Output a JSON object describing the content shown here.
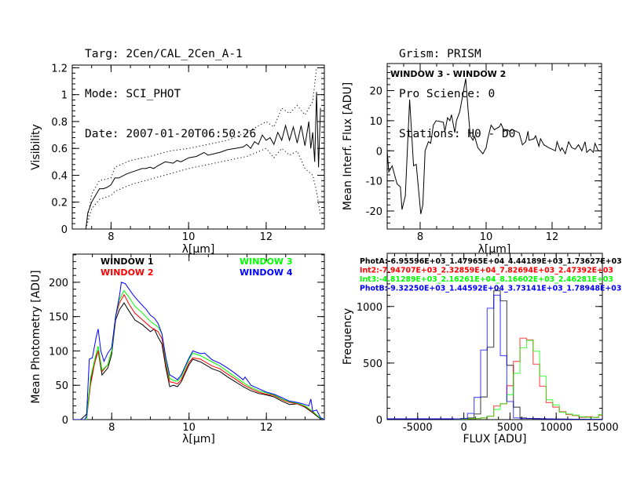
{
  "header": {
    "left": [
      "Targ: 2Cen/CAL_2Cen_A-1",
      "Mode: SCI_PHOT",
      "Date: 2007-01-20T06:50:26"
    ],
    "right": [
      "Grism: PRISM",
      "Pro Science: 0",
      "Stations: H0 - D0"
    ]
  },
  "chart_data": [
    {
      "id": "visibility",
      "type": "line",
      "xlabel": "λ[μm]",
      "ylabel": "Visibility",
      "xlim": [
        7.0,
        13.5
      ],
      "ylim": [
        0,
        1.22
      ],
      "xticks": [
        8,
        10,
        12
      ],
      "yticks": [
        0,
        0.2,
        0.4,
        0.6,
        0.8,
        1,
        1.2
      ],
      "series": [
        {
          "style": "solid",
          "color": "#000000",
          "x": [
            7.0,
            7.35,
            7.4,
            7.5,
            7.6,
            7.7,
            7.8,
            7.9,
            8.0,
            8.1,
            8.2,
            8.4,
            8.6,
            8.8,
            8.9,
            9.0,
            9.1,
            9.2,
            9.4,
            9.6,
            9.7,
            9.8,
            10.0,
            10.2,
            10.4,
            10.5,
            10.8,
            11.0,
            11.2,
            11.4,
            11.5,
            11.6,
            11.7,
            11.8,
            11.9,
            12.0,
            12.1,
            12.2,
            12.3,
            12.4,
            12.5,
            12.6,
            12.7,
            12.8,
            12.9,
            13.0,
            13.1,
            13.15,
            13.2,
            13.25,
            13.3,
            13.35,
            13.4
          ],
          "y": [
            0,
            0,
            0.12,
            0.2,
            0.25,
            0.3,
            0.3,
            0.31,
            0.33,
            0.38,
            0.38,
            0.41,
            0.43,
            0.45,
            0.45,
            0.46,
            0.45,
            0.47,
            0.5,
            0.49,
            0.51,
            0.5,
            0.53,
            0.54,
            0.57,
            0.55,
            0.57,
            0.59,
            0.6,
            0.61,
            0.63,
            0.6,
            0.65,
            0.63,
            0.7,
            0.66,
            0.68,
            0.63,
            0.72,
            0.66,
            0.77,
            0.66,
            0.76,
            0.64,
            0.77,
            0.62,
            0.8,
            0.6,
            0.72,
            0.5,
            1.02,
            0.46,
            0.9
          ]
        },
        {
          "style": "dotted",
          "color": "#000000",
          "x": [
            7.35,
            7.5,
            7.7,
            8.0,
            8.1,
            8.5,
            9.0,
            9.5,
            10.0,
            10.5,
            11.0,
            11.5,
            12.0,
            12.2,
            12.4,
            12.6,
            12.8,
            13.0,
            13.2,
            13.3,
            13.4
          ],
          "y": [
            0,
            0.26,
            0.36,
            0.38,
            0.46,
            0.51,
            0.54,
            0.58,
            0.6,
            0.63,
            0.66,
            0.72,
            0.8,
            0.76,
            0.9,
            0.86,
            0.92,
            0.85,
            0.95,
            1.2,
            1.2
          ]
        },
        {
          "style": "dotted",
          "color": "#000000",
          "x": [
            7.35,
            7.5,
            7.7,
            8.0,
            8.1,
            8.5,
            9.0,
            9.5,
            10.0,
            10.5,
            11.0,
            11.5,
            12.0,
            12.2,
            12.4,
            12.6,
            12.8,
            13.0,
            13.2,
            13.3,
            13.4
          ],
          "y": [
            0,
            0.15,
            0.22,
            0.25,
            0.28,
            0.33,
            0.37,
            0.41,
            0.45,
            0.48,
            0.51,
            0.54,
            0.6,
            0.53,
            0.6,
            0.55,
            0.58,
            0.45,
            0.4,
            0.28,
            0.1
          ]
        }
      ]
    },
    {
      "id": "interf-flux",
      "type": "line",
      "xlabel": "λ[μm]",
      "ylabel": "Mean Interf. Flux [ADU]",
      "annotation": "WINDOW 3 - WINDOW 2",
      "xlim": [
        7.0,
        13.5
      ],
      "ylim": [
        -26,
        29
      ],
      "xticks": [
        8,
        10,
        12
      ],
      "yticks": [
        -20,
        -10,
        0,
        10,
        20
      ],
      "series": [
        {
          "style": "solid",
          "color": "#000000",
          "x": [
            7.0,
            7.05,
            7.15,
            7.3,
            7.4,
            7.45,
            7.55,
            7.68,
            7.8,
            7.88,
            8.02,
            8.08,
            8.15,
            8.25,
            8.32,
            8.4,
            8.48,
            8.7,
            8.75,
            8.83,
            8.9,
            8.95,
            9.05,
            9.1,
            9.2,
            9.3,
            9.38,
            9.45,
            9.52,
            9.6,
            9.65,
            9.75,
            9.9,
            10.0,
            10.05,
            10.15,
            10.25,
            10.4,
            10.45,
            10.55,
            10.65,
            10.7,
            10.8,
            10.9,
            11.0,
            11.1,
            11.2,
            11.27,
            11.3,
            11.45,
            11.5,
            11.6,
            11.65,
            11.75,
            11.9,
            12.0,
            12.1,
            12.15,
            12.25,
            12.3,
            12.4,
            12.5,
            12.6,
            12.7,
            12.8,
            12.9,
            13.0,
            13.05,
            13.15,
            13.25,
            13.3,
            13.4
          ],
          "y": [
            0,
            -7,
            -5,
            -11,
            -12,
            -19.5,
            -15,
            17,
            -5,
            -4.5,
            -21,
            -18,
            0,
            3,
            2.5,
            8.5,
            10,
            9.5,
            6.5,
            11,
            10,
            12,
            6,
            10,
            13,
            19,
            24,
            14,
            5,
            3.5,
            4.8,
            1,
            -1,
            1,
            4,
            8.5,
            7,
            8,
            9,
            6.5,
            7,
            6.5,
            7,
            6.5,
            6,
            2,
            3,
            6.5,
            3.5,
            4,
            5,
            1.5,
            4,
            2,
            1,
            0.5,
            0,
            3,
            0,
            1,
            -1,
            3,
            1,
            0.5,
            2,
            0,
            3,
            -0.5,
            0.5,
            -0.5,
            2.5,
            0
          ]
        }
      ]
    },
    {
      "id": "photometry",
      "type": "line",
      "xlabel": "λ[μm]",
      "ylabel": "Mean Photometry [ADU]",
      "xlim": [
        7.0,
        13.5
      ],
      "ylim": [
        0,
        241
      ],
      "xticks": [
        8,
        10,
        12
      ],
      "yticks": [
        0,
        50,
        100,
        150,
        200
      ],
      "series": [
        {
          "name": "WINDOW 1",
          "color": "#000000",
          "x": [
            7.0,
            7.2,
            7.35,
            7.45,
            7.55,
            7.65,
            7.75,
            7.9,
            8.0,
            8.1,
            8.2,
            8.32,
            8.45,
            8.6,
            8.8,
            9.0,
            9.1,
            9.2,
            9.3,
            9.4,
            9.5,
            9.6,
            9.7,
            9.8,
            10.0,
            10.1,
            10.3,
            10.6,
            10.8,
            11.0,
            11.2,
            11.4,
            11.6,
            11.8,
            12.0,
            12.2,
            12.4,
            12.6,
            12.8,
            13.0,
            13.2,
            13.4,
            13.5
          ],
          "y": [
            0,
            0,
            8,
            55,
            85,
            100,
            65,
            75,
            95,
            145,
            160,
            170,
            158,
            145,
            138,
            128,
            132,
            120,
            110,
            75,
            48,
            50,
            48,
            55,
            80,
            88,
            84,
            74,
            70,
            62,
            55,
            48,
            42,
            38,
            36,
            33,
            27,
            22,
            23,
            18,
            10,
            1,
            0
          ]
        },
        {
          "name": "WINDOW 2",
          "color": "#ff0000",
          "x": [
            7.0,
            7.35,
            7.45,
            7.55,
            7.65,
            7.75,
            7.9,
            8.0,
            8.1,
            8.2,
            8.32,
            8.45,
            8.6,
            8.8,
            9.0,
            9.2,
            9.3,
            9.4,
            9.5,
            9.6,
            9.7,
            9.8,
            10.0,
            10.1,
            10.3,
            10.6,
            10.8,
            11.0,
            11.2,
            11.4,
            11.6,
            11.8,
            12.0,
            12.2,
            12.4,
            12.6,
            12.8,
            13.0,
            13.2,
            13.4,
            13.5
          ],
          "y": [
            0,
            0,
            50,
            80,
            100,
            70,
            80,
            100,
            150,
            170,
            182,
            168,
            155,
            145,
            135,
            128,
            118,
            80,
            55,
            54,
            52,
            58,
            83,
            90,
            88,
            78,
            74,
            66,
            59,
            51,
            45,
            40,
            37,
            35,
            29,
            25,
            23,
            19,
            11,
            2,
            0
          ]
        },
        {
          "name": "WINDOW 3",
          "color": "#00ff00",
          "x": [
            7.0,
            7.35,
            7.45,
            7.55,
            7.65,
            7.75,
            7.9,
            8.0,
            8.1,
            8.2,
            8.32,
            8.45,
            8.6,
            8.8,
            9.0,
            9.2,
            9.3,
            9.4,
            9.5,
            9.6,
            9.7,
            9.8,
            10.0,
            10.1,
            10.3,
            10.6,
            10.8,
            11.0,
            11.2,
            11.4,
            11.6,
            11.8,
            12.0,
            12.2,
            12.4,
            12.6,
            12.8,
            13.0,
            13.2,
            13.4,
            13.5
          ],
          "y": [
            0,
            0,
            60,
            85,
            107,
            72,
            80,
            100,
            150,
            175,
            188,
            178,
            165,
            155,
            143,
            135,
            125,
            85,
            60,
            57,
            56,
            62,
            88,
            97,
            93,
            84,
            78,
            70,
            62,
            54,
            47,
            42,
            39,
            36,
            30,
            26,
            24,
            20,
            12,
            2,
            0
          ]
        },
        {
          "name": "WINDOW 4",
          "color": "#0000ff",
          "x": [
            7.0,
            7.3,
            7.35,
            7.42,
            7.5,
            7.6,
            7.65,
            7.72,
            7.8,
            7.9,
            8.0,
            8.1,
            8.2,
            8.25,
            8.35,
            8.45,
            8.55,
            8.7,
            8.9,
            9.0,
            9.1,
            9.2,
            9.3,
            9.4,
            9.5,
            9.6,
            9.7,
            9.8,
            10.0,
            10.1,
            10.3,
            10.4,
            10.6,
            10.8,
            11.0,
            11.2,
            11.4,
            11.45,
            11.6,
            11.8,
            12.0,
            12.2,
            12.4,
            12.6,
            12.8,
            13.0,
            13.1,
            13.15,
            13.2,
            13.3,
            13.4,
            13.5
          ],
          "y": [
            0,
            0,
            5,
            88,
            90,
            120,
            132,
            100,
            85,
            97,
            105,
            150,
            180,
            200,
            198,
            190,
            182,
            172,
            160,
            152,
            148,
            140,
            125,
            90,
            65,
            62,
            58,
            65,
            90,
            100,
            96,
            97,
            87,
            82,
            75,
            67,
            58,
            62,
            50,
            45,
            40,
            37,
            32,
            27,
            25,
            22,
            20,
            30,
            12,
            14,
            3,
            0
          ]
        }
      ]
    },
    {
      "id": "flux-histogram",
      "type": "bar",
      "xlabel": "FLUX [ADU]",
      "ylabel": "Frequency",
      "xlim": [
        -8300,
        15000
      ],
      "ylim": [
        0,
        1470
      ],
      "xticks": [
        -5000,
        0,
        5000,
        10000,
        15000
      ],
      "yticks": [
        0,
        500,
        1000
      ],
      "bin_width": 710,
      "bin_centers": [
        -667,
        43,
        753,
        1463,
        2173,
        2883,
        3593,
        4303,
        5013,
        5723,
        6433,
        7143,
        7853,
        8563,
        9273,
        9983,
        10693,
        11403,
        12113,
        12823,
        13533,
        14243,
        14953
      ],
      "series": [
        {
          "name": "PhotA",
          "stats": "PhotA:-6.95596E+03_1.47965E+04_4.44189E+03_1.73627E+03",
          "color": "#000000",
          "values": [
            5,
            10,
            15,
            50,
            200,
            640,
            1140,
            1050,
            480,
            110,
            15,
            10,
            10,
            8,
            6,
            5,
            5,
            4,
            3,
            3,
            2,
            2,
            2
          ]
        },
        {
          "name": "Int2",
          "stats": "Int2:-7.94707E+03_2.32859E+04_7.82694E+03_2.47392E+03",
          "color": "#ff0000",
          "values": [
            5,
            5,
            8,
            10,
            15,
            30,
            120,
            140,
            300,
            515,
            720,
            705,
            490,
            295,
            150,
            110,
            70,
            45,
            35,
            20,
            25,
            20,
            40
          ]
        },
        {
          "name": "Int3",
          "stats": "Int3:-4.81289E+03_2.16261E+04_8.16602E+03_2.46281E+03",
          "color": "#00ff00",
          "values": [
            3,
            5,
            8,
            10,
            15,
            30,
            90,
            140,
            220,
            410,
            635,
            700,
            605,
            385,
            175,
            130,
            65,
            50,
            40,
            25,
            20,
            20,
            45
          ]
        },
        {
          "name": "PhotB",
          "stats": "PhotB:-9.32250E+03_1.44592E+04_3.73141E+03_1.78948E+03",
          "color": "#0000ff",
          "values": [
            5,
            10,
            55,
            197,
            615,
            985,
            1100,
            565,
            160,
            15,
            10,
            10,
            8,
            6,
            5,
            4,
            3,
            3,
            2,
            2,
            2,
            2,
            2
          ]
        }
      ]
    }
  ]
}
